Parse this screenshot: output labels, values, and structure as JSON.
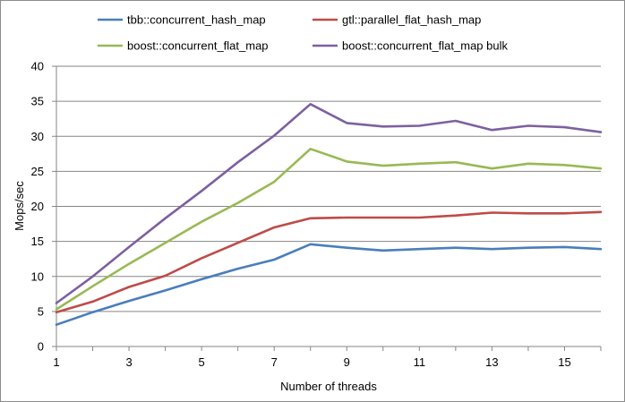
{
  "chart_data": {
    "type": "line",
    "title": "",
    "xlabel": "Number of threads",
    "ylabel": "Mops/sec",
    "xlim": [
      1,
      16
    ],
    "ylim": [
      0,
      40
    ],
    "x": [
      1,
      2,
      3,
      4,
      5,
      6,
      7,
      8,
      9,
      10,
      11,
      12,
      13,
      14,
      15,
      16
    ],
    "x_tick_labels": [
      "1",
      "3",
      "5",
      "7",
      "9",
      "11",
      "13",
      "15"
    ],
    "y_tick_labels": [
      "0",
      "5",
      "10",
      "15",
      "20",
      "25",
      "30",
      "35",
      "40"
    ],
    "grid": "horizontal",
    "legend_position": "top",
    "series": [
      {
        "name": "tbb::concurrent_hash_map",
        "color": "#4a7ebb",
        "values": [
          3.1,
          4.9,
          6.5,
          8.0,
          9.6,
          11.1,
          12.4,
          14.6,
          14.1,
          13.7,
          13.9,
          14.1,
          13.9,
          14.1,
          14.2,
          13.9
        ]
      },
      {
        "name": "gtl::parallel_flat_hash_map",
        "color": "#be4b48",
        "values": [
          4.9,
          6.4,
          8.5,
          10.1,
          12.6,
          14.8,
          17.0,
          18.3,
          18.4,
          18.4,
          18.4,
          18.7,
          19.1,
          19.0,
          19.0,
          19.2
        ]
      },
      {
        "name": "boost::concurrent_flat_map",
        "color": "#98b954",
        "values": [
          5.3,
          8.6,
          11.8,
          14.8,
          17.8,
          20.5,
          23.5,
          28.2,
          26.4,
          25.8,
          26.1,
          26.3,
          25.4,
          26.1,
          25.9,
          25.4
        ]
      },
      {
        "name": "boost::concurrent_flat_map bulk",
        "color": "#7d60a0",
        "values": [
          6.2,
          10.0,
          14.2,
          18.3,
          22.2,
          26.3,
          30.1,
          34.6,
          31.9,
          31.4,
          31.5,
          32.2,
          30.9,
          31.5,
          31.3,
          30.6
        ]
      }
    ]
  }
}
